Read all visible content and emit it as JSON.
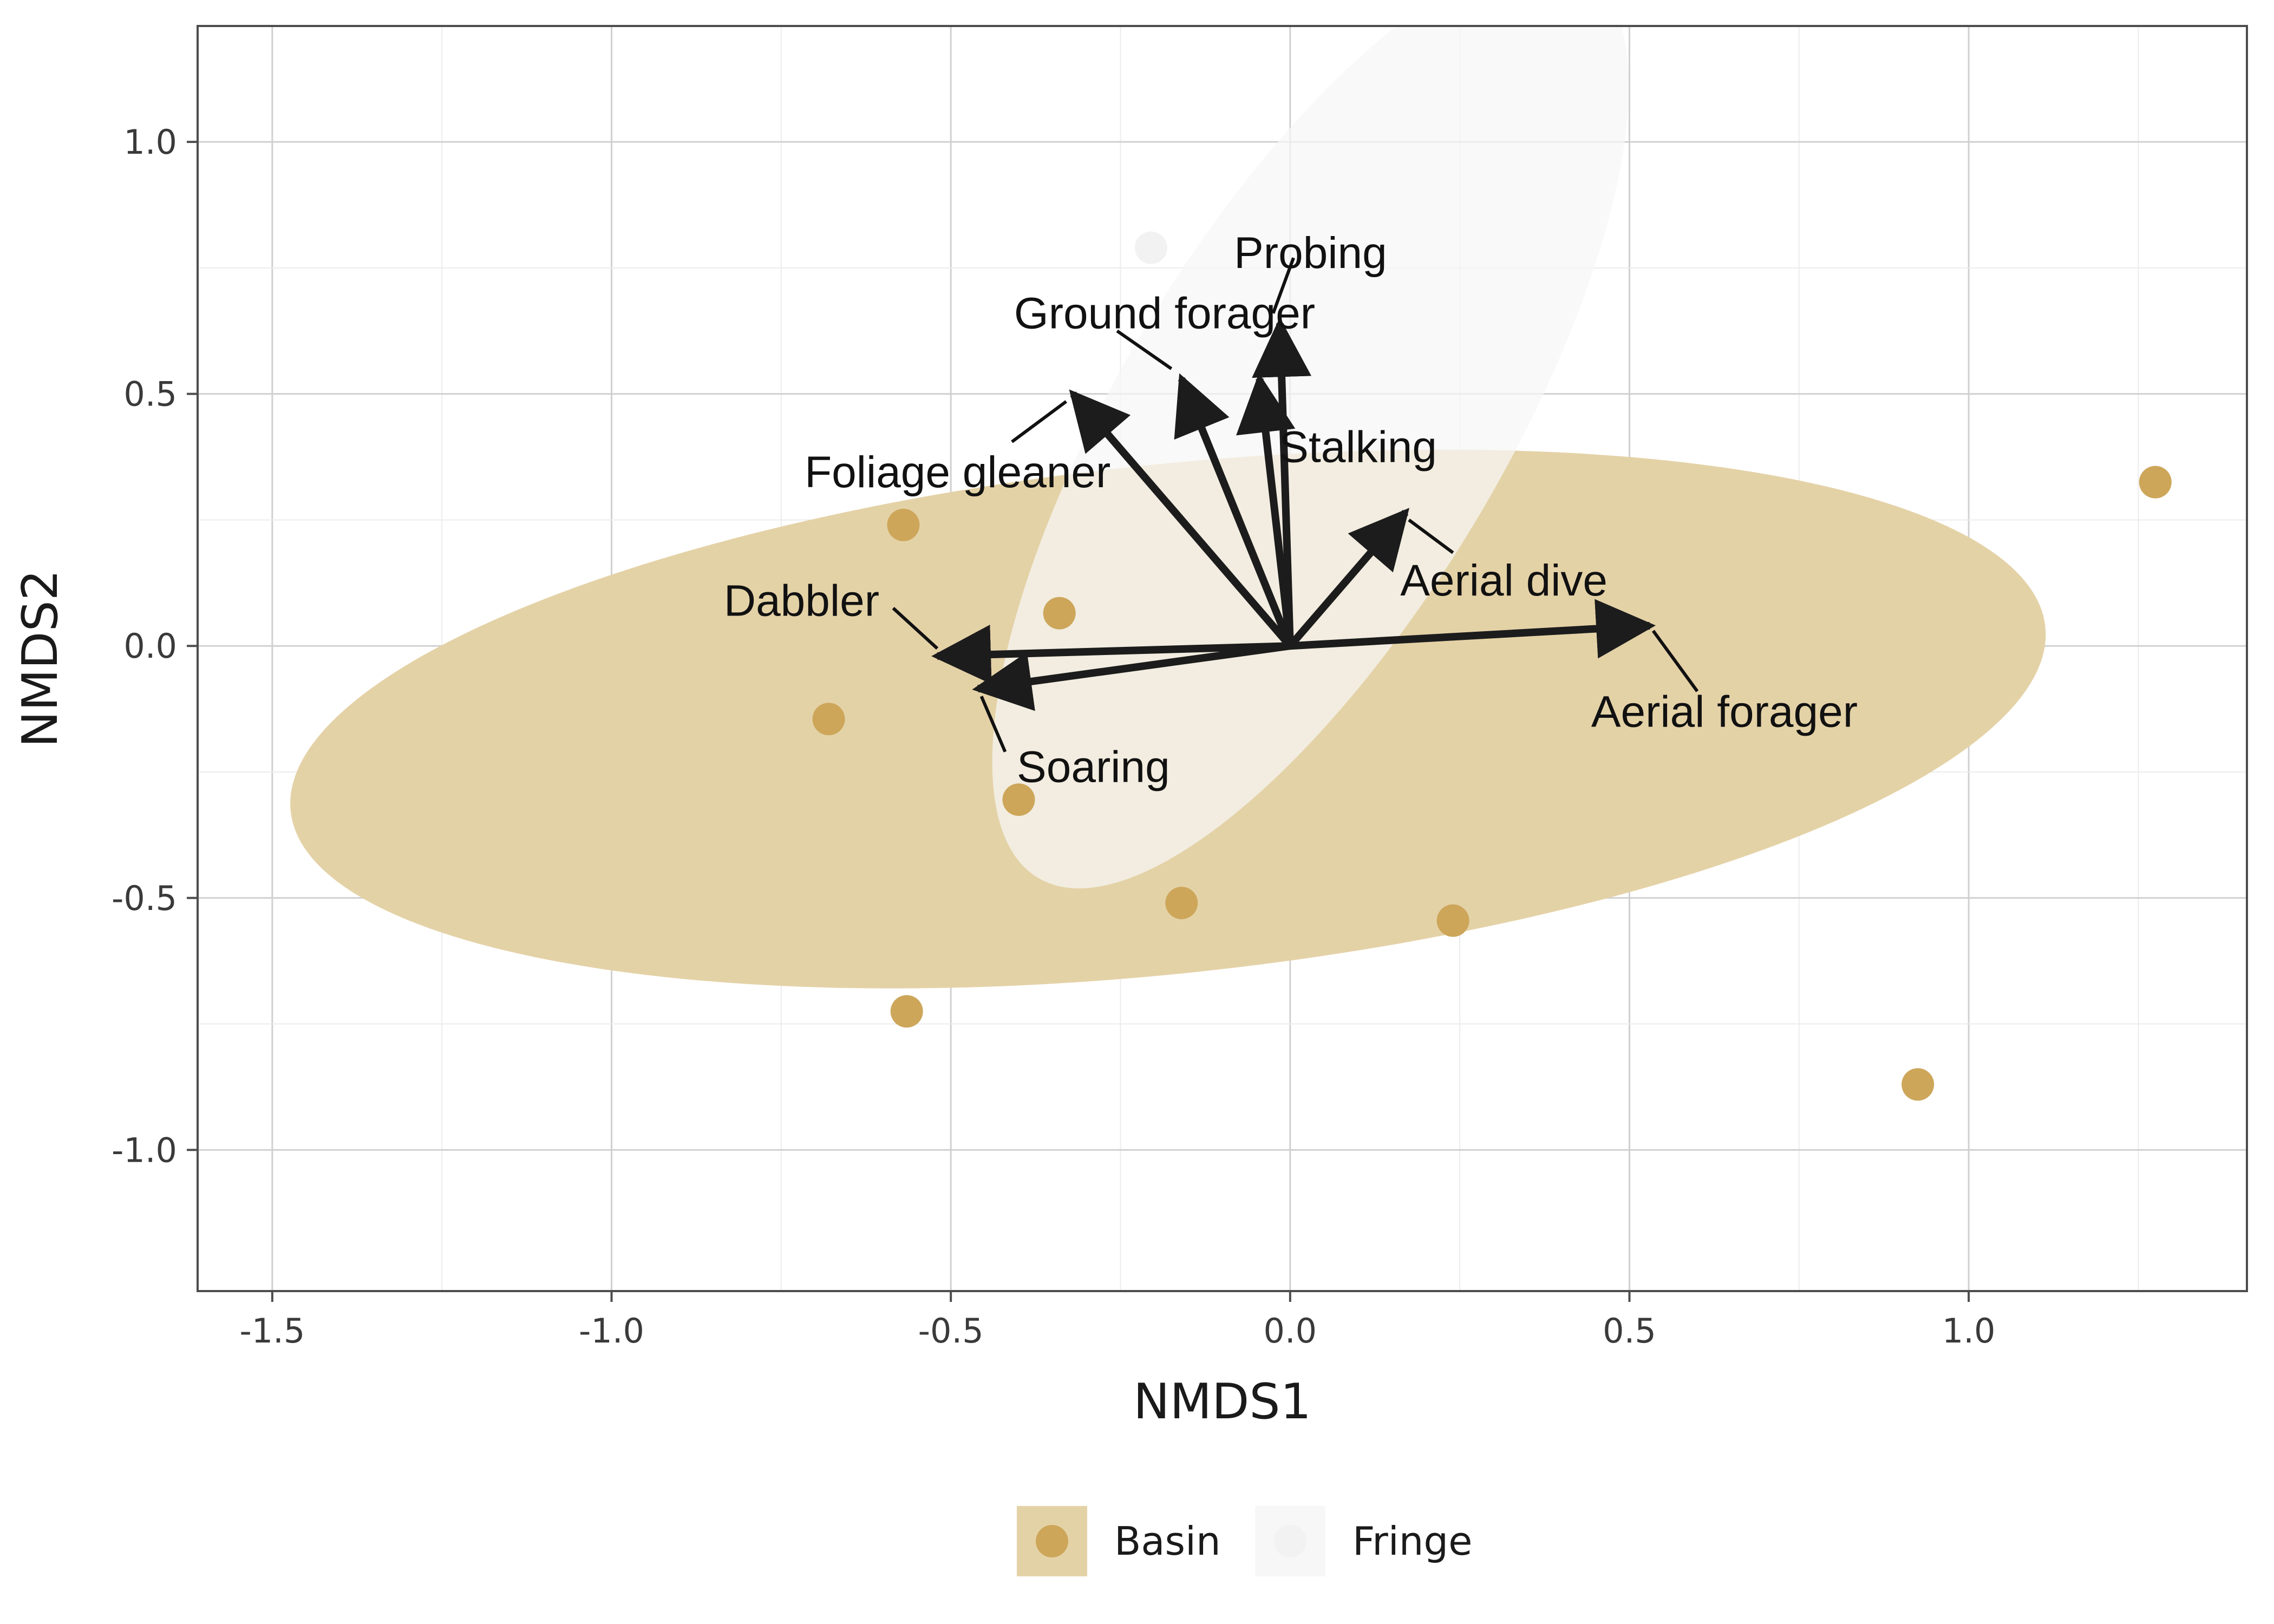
{
  "chart_data": {
    "type": "scatter",
    "title": "",
    "xlabel": "NMDS1",
    "ylabel": "NMDS2",
    "xlim": [
      -1.61,
      1.41
    ],
    "ylim": [
      -1.28,
      1.23
    ],
    "xticks": [
      -1.5,
      -1.0,
      -0.5,
      0.0,
      0.5,
      1.0
    ],
    "xtick_labels": [
      "-1.5",
      "-1.0",
      "-0.5",
      "0.0",
      "0.5",
      "1.0"
    ],
    "yticks": [
      -1.0,
      -0.5,
      0.0,
      0.5,
      1.0
    ],
    "ytick_labels": [
      "-1.0",
      "-0.5",
      "0.0",
      "0.5",
      "1.0"
    ],
    "grid": true,
    "legend_position": "bottom",
    "series": [
      {
        "name": "Basin",
        "color": "#cda65a",
        "fill": "#e4d2a7",
        "points": [
          {
            "x": -0.57,
            "y": 0.24
          },
          {
            "x": -0.34,
            "y": 0.065
          },
          {
            "x": -0.68,
            "y": -0.145
          },
          {
            "x": -0.4,
            "y": -0.305
          },
          {
            "x": -0.16,
            "y": -0.51
          },
          {
            "x": 0.24,
            "y": -0.545
          },
          {
            "x": -0.565,
            "y": -0.725
          },
          {
            "x": 0.925,
            "y": -0.87
          },
          {
            "x": 1.275,
            "y": 0.325
          }
        ],
        "ellipse": {
          "cx": -0.18,
          "cy": -0.145,
          "rx": 1.3,
          "ry": 0.505,
          "angle_deg": -6
        }
      },
      {
        "name": "Fringe",
        "color": "#f2f2f2",
        "fill": "#f7f7f7",
        "points": [
          {
            "x": -0.205,
            "y": 0.79
          }
        ],
        "ellipse": {
          "cx": 0.03,
          "cy": 0.44,
          "rx": 0.78,
          "ry": 0.38,
          "angle_deg": -59
        }
      }
    ],
    "vectors": [
      {
        "label": "Probing",
        "x": -0.015,
        "y": 0.64,
        "label_x": 0.03,
        "label_y": 0.78,
        "leader": [
          [
            0.005,
            0.77
          ],
          [
            -0.025,
            0.66
          ]
        ]
      },
      {
        "label": "Ground forager",
        "x": -0.16,
        "y": 0.53,
        "label_x": -0.185,
        "label_y": 0.66,
        "leader": [
          [
            -0.255,
            0.625
          ],
          [
            -0.175,
            0.55
          ]
        ]
      },
      {
        "label": "Stalking",
        "x": -0.045,
        "y": 0.53,
        "label_x": 0.1,
        "label_y": 0.395,
        "leader": null
      },
      {
        "label": "Foliage gleaner",
        "x": -0.32,
        "y": 0.5,
        "label_x": -0.49,
        "label_y": 0.345,
        "leader": [
          [
            -0.41,
            0.405
          ],
          [
            -0.33,
            0.485
          ]
        ]
      },
      {
        "label": "Aerial dive",
        "x": 0.17,
        "y": 0.265,
        "label_x": 0.315,
        "label_y": 0.13,
        "leader": [
          [
            0.24,
            0.185
          ],
          [
            0.175,
            0.25
          ]
        ]
      },
      {
        "label": "Dabbler",
        "x": -0.52,
        "y": -0.02,
        "label_x": -0.72,
        "label_y": 0.09,
        "leader": [
          [
            -0.585,
            0.075
          ],
          [
            -0.52,
            -0.005
          ]
        ]
      },
      {
        "label": "Soaring",
        "x": -0.46,
        "y": -0.085,
        "label_x": -0.29,
        "label_y": -0.24,
        "leader": [
          [
            -0.42,
            -0.21
          ],
          [
            -0.455,
            -0.1
          ]
        ]
      },
      {
        "label": "Aerial forager",
        "x": 0.53,
        "y": 0.04,
        "label_x": 0.64,
        "label_y": -0.13,
        "leader": [
          [
            0.6,
            -0.09
          ],
          [
            0.535,
            0.03
          ]
        ]
      }
    ]
  }
}
